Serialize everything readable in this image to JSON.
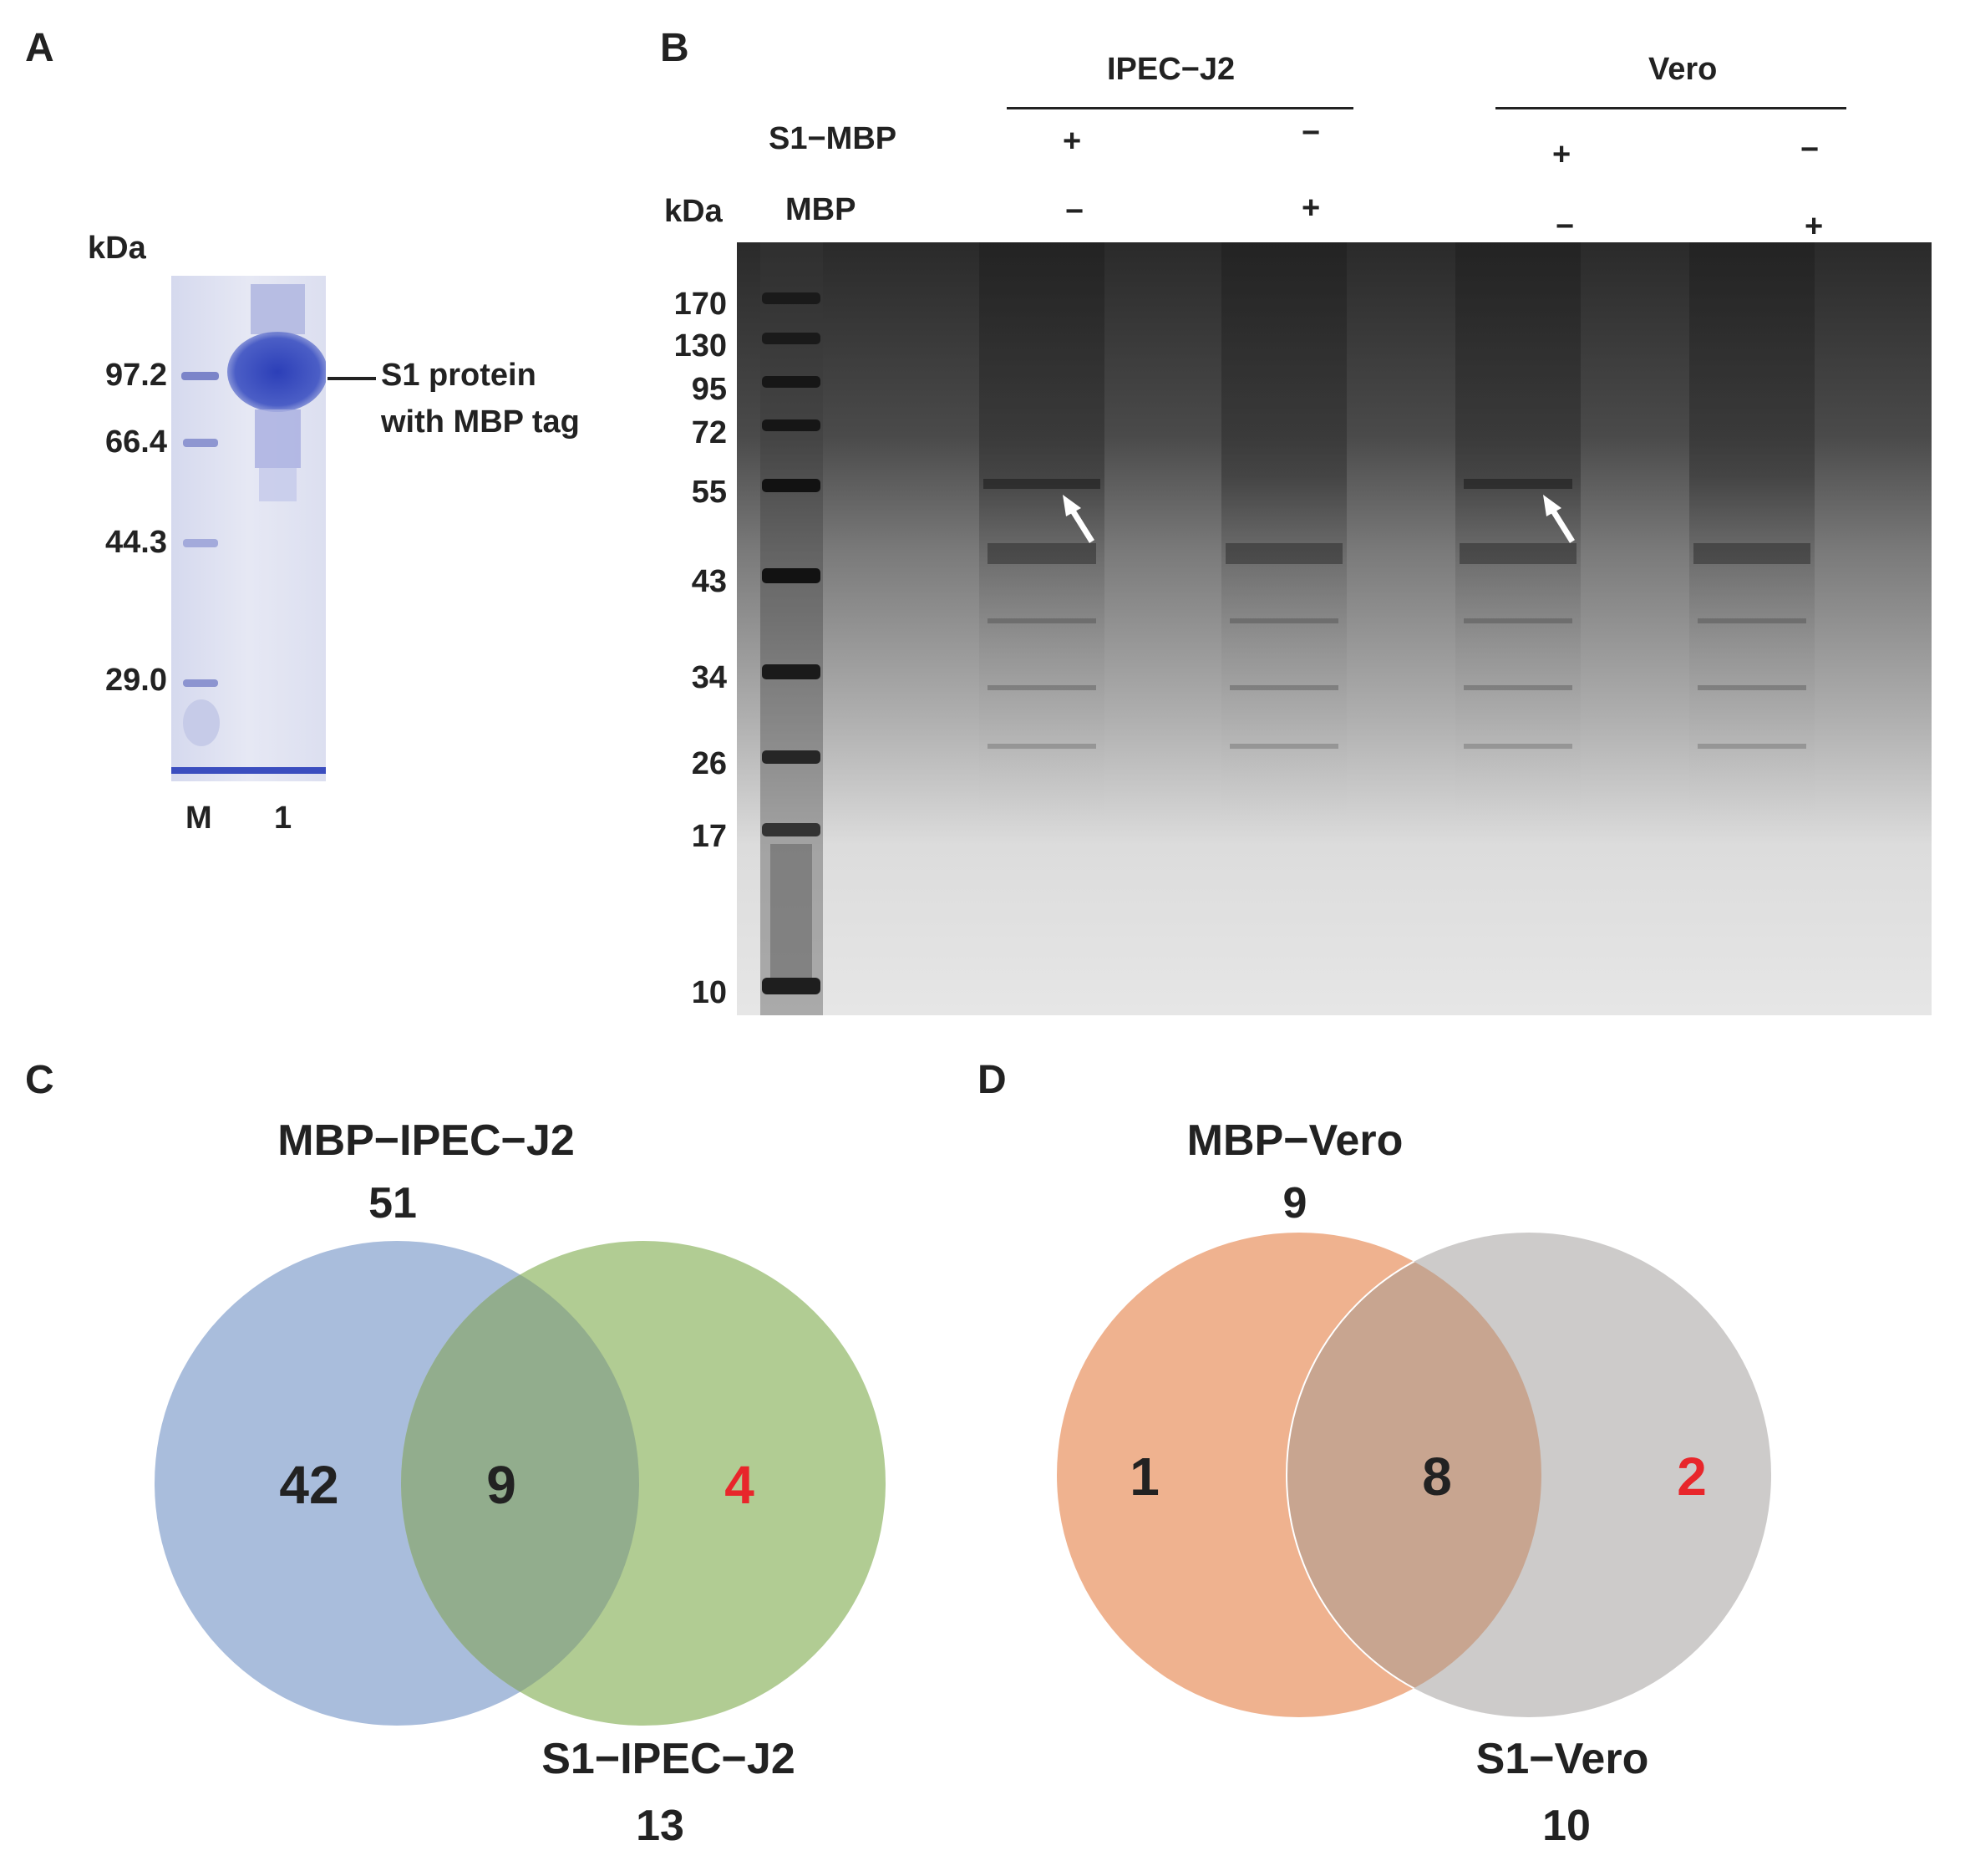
{
  "panels": {
    "A": {
      "letter": "A",
      "unit": "kDa",
      "markers": [
        "97.2",
        "66.4",
        "44.3",
        "29.0"
      ],
      "annotation_line1": "S1 protein",
      "annotation_line2": "with MBP tag",
      "lanes": [
        "M",
        "1"
      ]
    },
    "B": {
      "letter": "B",
      "unit": "kDa",
      "groups": [
        "IPEC−J2",
        "Vero"
      ],
      "row_labels": [
        "S1−MBP",
        "MBP"
      ],
      "s1_mbp_signs": [
        "+",
        "−",
        "+",
        "−"
      ],
      "mbp_signs": [
        "−",
        "+",
        "−",
        "+"
      ],
      "markers": [
        "170",
        "130",
        "95",
        "72",
        "55",
        "43",
        "34",
        "26",
        "17",
        "10"
      ]
    },
    "C": {
      "letter": "C",
      "left_title": "MBP−IPEC−J2",
      "left_total": "51",
      "right_title": "S1−IPEC−J2",
      "right_total": "13",
      "left_only": "42",
      "overlap": "9",
      "right_only": "4",
      "left_color": "#a9bddc",
      "right_color": "#b1cc93",
      "overlap_color": "#92ad8d"
    },
    "D": {
      "letter": "D",
      "left_title": "MBP−Vero",
      "left_total": "9",
      "right_title": "S1−Vero",
      "right_total": "10",
      "left_only": "1",
      "overlap": "8",
      "right_only": "2",
      "left_color": "#efb28f",
      "right_color": "#cdcbca",
      "overlap_color": "#c8a590"
    },
    "highlight_color": "#e8262b"
  }
}
